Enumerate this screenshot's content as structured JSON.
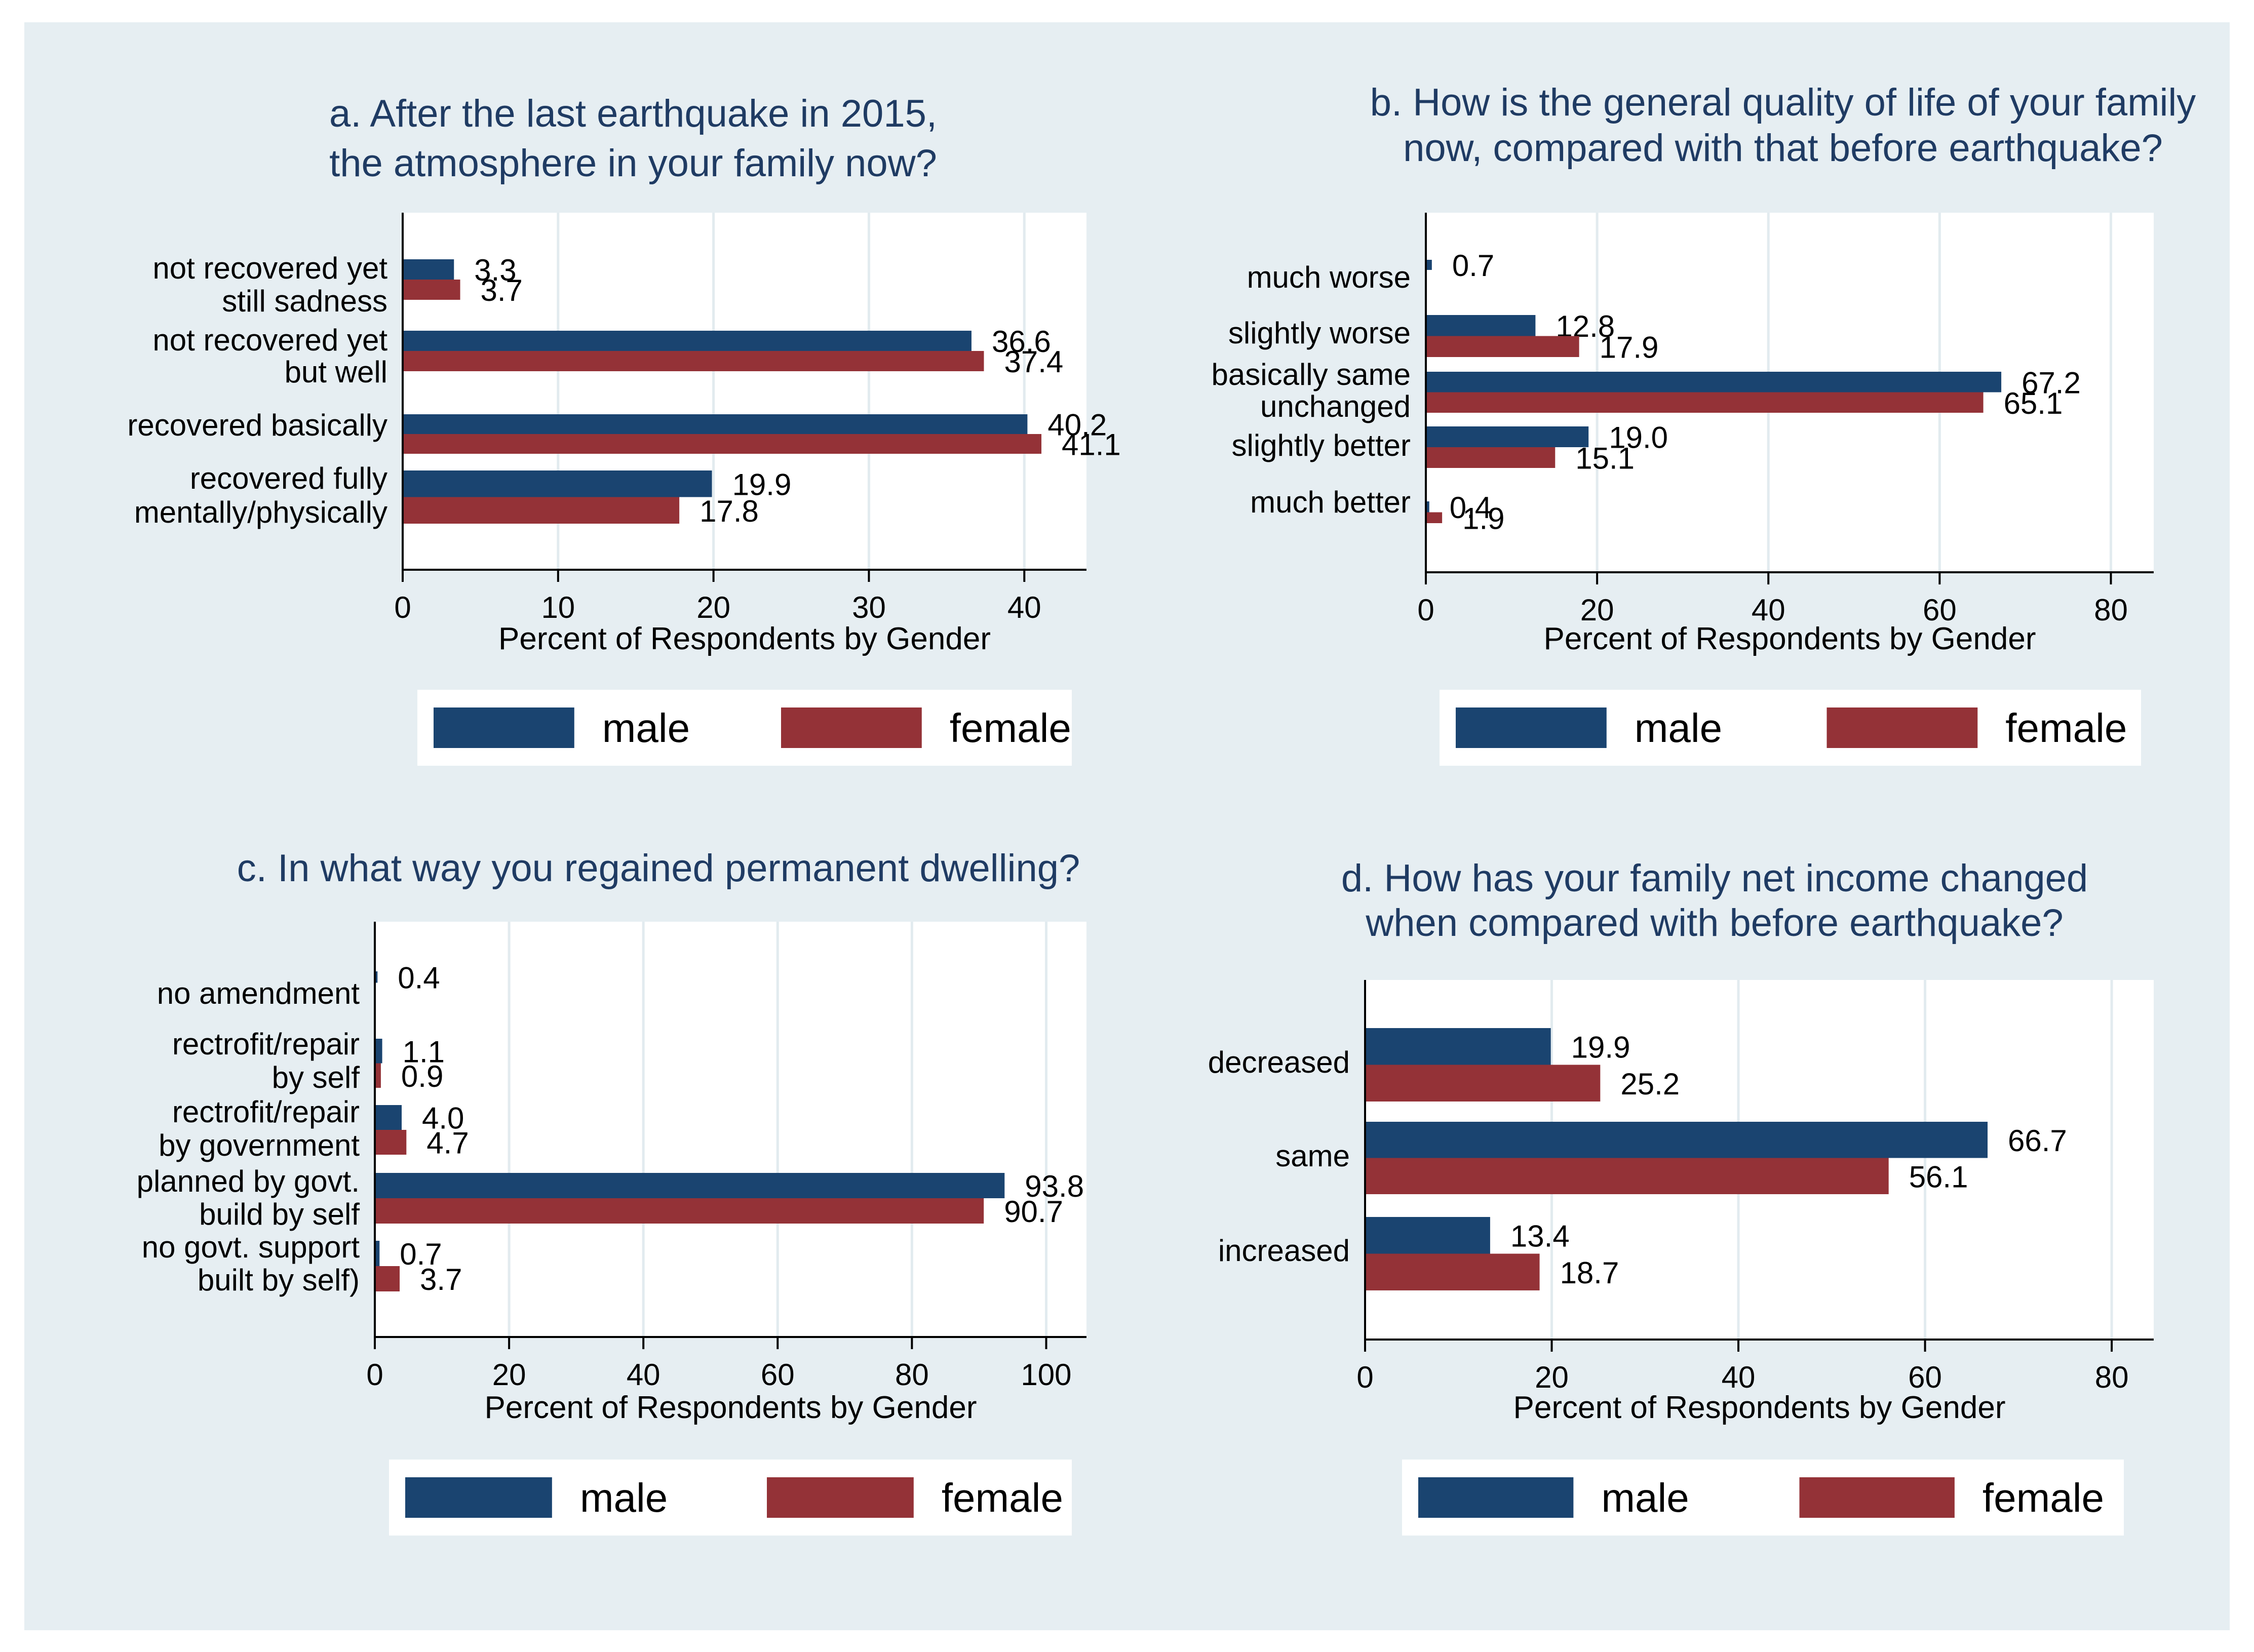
{
  "chart_data": [
    {
      "type": "bar",
      "orientation": "horizontal",
      "title": [
        "a. After the last earthquake in 2015,",
        "the atmosphere in your family now?"
      ],
      "categories": [
        [
          "not recovered yet",
          "still sadness"
        ],
        [
          "not recovered yet",
          "but well"
        ],
        [
          "recovered basically"
        ],
        [
          "recovered fully",
          "mentally/physically"
        ]
      ],
      "series": [
        {
          "name": "male",
          "values": [
            3.3,
            36.6,
            40.2,
            19.9
          ],
          "color": "#1a4470"
        },
        {
          "name": "female",
          "values": [
            3.7,
            37.4,
            41.1,
            17.8
          ],
          "color": "#943237"
        }
      ],
      "xlabel": "Percent of Respondents by Gender",
      "xlim": [
        0,
        44
      ],
      "xticks": [
        0,
        10,
        20,
        30,
        40
      ],
      "grid": true,
      "legend": "bottom"
    },
    {
      "type": "bar",
      "orientation": "horizontal",
      "title": [
        "b. How is the general quality of life of your family",
        "now, compared with that before earthquake?"
      ],
      "categories": [
        [
          "much worse"
        ],
        [
          "slightly worse"
        ],
        [
          "basically same",
          "unchanged"
        ],
        [
          "slightly better"
        ],
        [
          "much better"
        ]
      ],
      "series": [
        {
          "name": "male",
          "values": [
            0.7,
            12.8,
            67.2,
            19.0,
            0.4
          ],
          "color": "#1a4470"
        },
        {
          "name": "female",
          "values": [
            null,
            17.9,
            65.1,
            15.1,
            1.9
          ],
          "color": "#943237"
        }
      ],
      "xlabel": "Percent of Respondents by Gender",
      "xlim": [
        0,
        85
      ],
      "xticks": [
        0,
        20,
        40,
        60,
        80
      ],
      "grid": true,
      "legend": "bottom"
    },
    {
      "type": "bar",
      "orientation": "horizontal",
      "title": [
        "c. In what way you regained permanent dwelling?"
      ],
      "categories": [
        [
          "no amendment"
        ],
        [
          "rectrofit/repair",
          "by self"
        ],
        [
          "rectrofit/repair",
          "by government"
        ],
        [
          "planned by govt.",
          "build by self"
        ],
        [
          "no govt. support",
          "built by self)"
        ]
      ],
      "series": [
        {
          "name": "male",
          "values": [
            0.4,
            1.1,
            4.0,
            93.8,
            0.7
          ],
          "color": "#1a4470"
        },
        {
          "name": "female",
          "values": [
            null,
            0.9,
            4.7,
            90.7,
            3.7
          ],
          "color": "#943237"
        }
      ],
      "xlabel": "Percent of Respondents by Gender",
      "xlim": [
        0,
        106
      ],
      "xticks": [
        0,
        20,
        40,
        60,
        80,
        100
      ],
      "grid": true,
      "legend": "bottom"
    },
    {
      "type": "bar",
      "orientation": "horizontal",
      "title": [
        "d. How has your family net income changed",
        "when compared with before earthquake?"
      ],
      "categories": [
        [
          "decreased"
        ],
        [
          "same"
        ],
        [
          "increased"
        ]
      ],
      "series": [
        {
          "name": "male",
          "values": [
            19.9,
            66.7,
            13.4
          ],
          "color": "#1a4470"
        },
        {
          "name": "female",
          "values": [
            25.2,
            56.1,
            18.7
          ],
          "color": "#943237"
        }
      ],
      "xlabel": "Percent of Respondents by Gender",
      "xlim": [
        0,
        84.5
      ],
      "xticks": [
        0,
        20,
        40,
        60,
        80
      ],
      "grid": true,
      "legend": "bottom"
    }
  ]
}
